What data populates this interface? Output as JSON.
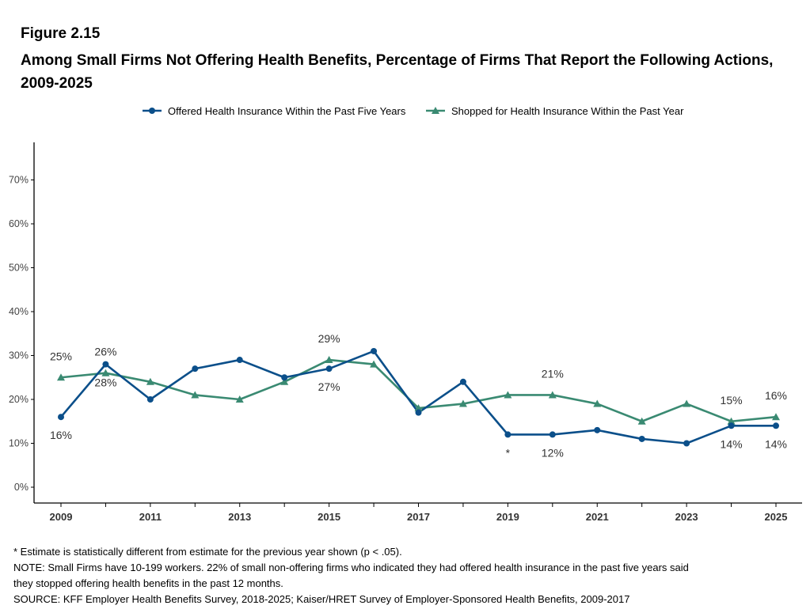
{
  "figure": {
    "label": "Figure 2.15",
    "title": "Among Small Firms Not Offering Health Benefits, Percentage of Firms That Report the Following Actions, 2009-2025"
  },
  "chart_data": {
    "type": "line",
    "x": [
      2009,
      2010,
      2011,
      2012,
      2013,
      2014,
      2015,
      2016,
      2017,
      2018,
      2019,
      2020,
      2021,
      2022,
      2023,
      2024,
      2025
    ],
    "xticks": [
      "2009",
      "2011",
      "2013",
      "2015",
      "2017",
      "2019",
      "2021",
      "2023",
      "2025"
    ],
    "yticks": [
      "0%",
      "10%",
      "20%",
      "30%",
      "40%",
      "50%",
      "60%",
      "70%"
    ],
    "ylim": [
      0,
      75
    ],
    "grid": false,
    "legend_position": "top",
    "series": [
      {
        "name": "Offered Health Insurance Within the Past Five Years",
        "color": "#0b4f8a",
        "marker": "circle",
        "values": [
          16,
          28,
          20,
          27,
          29,
          25,
          27,
          31,
          17,
          24,
          12,
          12,
          13,
          11,
          10,
          14,
          14
        ]
      },
      {
        "name": "Shopped for Health Insurance Within the Past Year",
        "color": "#3a8a72",
        "marker": "triangle",
        "values": [
          25,
          26,
          24,
          21,
          20,
          24,
          29,
          28,
          18,
          19,
          21,
          21,
          19,
          15,
          19,
          15,
          16
        ]
      }
    ],
    "data_labels": [
      {
        "x": 2009,
        "y": 16,
        "text": "16%",
        "pos": "below"
      },
      {
        "x": 2009,
        "y": 25,
        "text": "25%",
        "pos": "above"
      },
      {
        "x": 2010,
        "y": 26,
        "text": "26%",
        "pos": "above"
      },
      {
        "x": 2010,
        "y": 28,
        "text": "28%",
        "pos": "below"
      },
      {
        "x": 2015,
        "y": 29,
        "text": "29%",
        "pos": "above"
      },
      {
        "x": 2015,
        "y": 27,
        "text": "27%",
        "pos": "below"
      },
      {
        "x": 2019,
        "y": 12,
        "text": "*",
        "pos": "below"
      },
      {
        "x": 2020,
        "y": 21,
        "text": "21%",
        "pos": "above"
      },
      {
        "x": 2020,
        "y": 12,
        "text": "12%",
        "pos": "below"
      },
      {
        "x": 2024,
        "y": 15,
        "text": "15%",
        "pos": "above"
      },
      {
        "x": 2024,
        "y": 14,
        "text": "14%",
        "pos": "below"
      },
      {
        "x": 2025,
        "y": 16,
        "text": "16%",
        "pos": "above"
      },
      {
        "x": 2025,
        "y": 14,
        "text": "14%",
        "pos": "below"
      }
    ]
  },
  "notes": {
    "asterisk": "* Estimate is statistically different from estimate for the previous year shown (p < .05).",
    "note_line1": "NOTE: Small Firms have 10-199 workers. 22% of small non-offering firms who indicated they had offered health insurance in the past five years said",
    "note_line2": "they stopped offering health benefits in the past 12 months.",
    "source": "SOURCE: KFF Employer Health Benefits Survey, 2018-2025; Kaiser/HRET Survey of Employer-Sponsored Health Benefits, 2009-2017"
  }
}
